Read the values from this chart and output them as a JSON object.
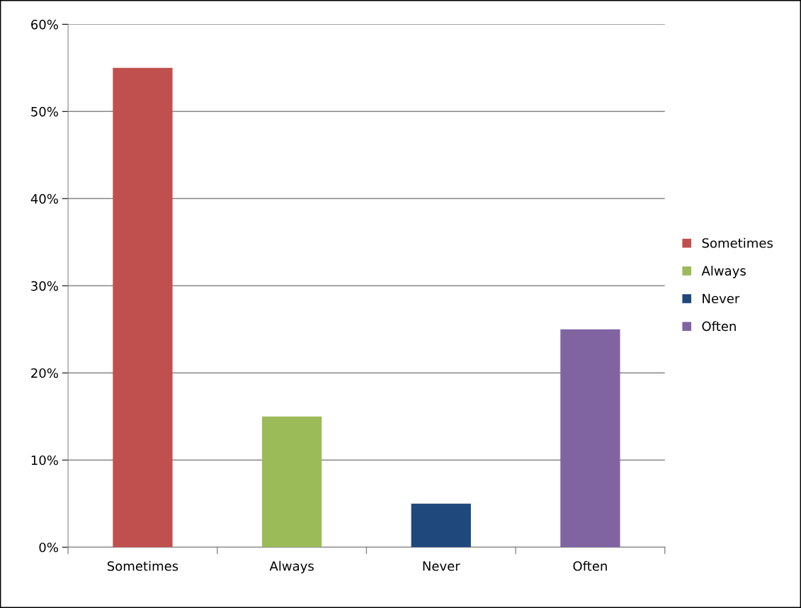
{
  "chart_data": {
    "type": "bar",
    "categories": [
      "Sometimes",
      "Always",
      "Never",
      "Often"
    ],
    "series": [
      {
        "name": "Sometimes",
        "color": "#c0504d",
        "values": [
          55,
          null,
          null,
          null
        ]
      },
      {
        "name": "Always",
        "color": "#9bbb59",
        "values": [
          null,
          15,
          null,
          null
        ]
      },
      {
        "name": "Never",
        "color": "#1f497d",
        "values": [
          null,
          null,
          5,
          null
        ]
      },
      {
        "name": "Often",
        "color": "#8064a2",
        "values": [
          null,
          null,
          null,
          25
        ]
      }
    ],
    "ylim": [
      0,
      60
    ],
    "yticks": [
      {
        "value": 0,
        "label": "0%"
      },
      {
        "value": 10,
        "label": "10%"
      },
      {
        "value": 20,
        "label": "20%"
      },
      {
        "value": 30,
        "label": "30%"
      },
      {
        "value": 40,
        "label": "40%"
      },
      {
        "value": 50,
        "label": "50%"
      },
      {
        "value": 60,
        "label": "60%"
      }
    ],
    "grid": "y",
    "legend": "right"
  }
}
